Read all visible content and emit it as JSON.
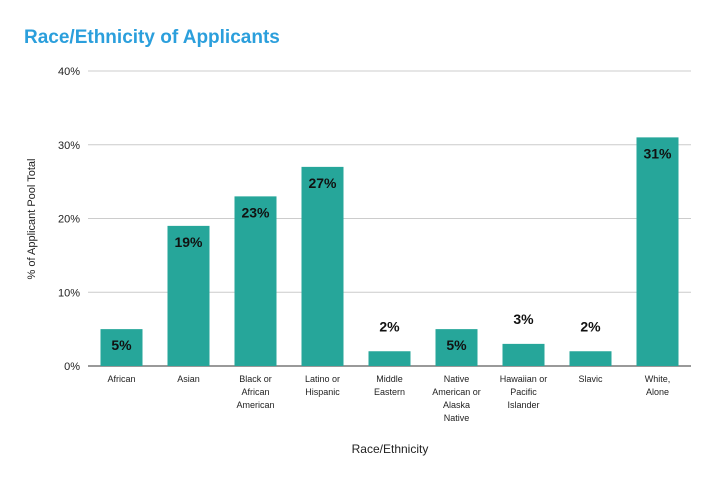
{
  "chart_data": {
    "type": "bar",
    "title": "Race/Ethnicity of Applicants",
    "xlabel": "Race/Ethnicity",
    "ylabel": "% of Applicant Pool Total",
    "ylim": [
      0,
      40
    ],
    "yticks": [
      "0%",
      "10%",
      "20%",
      "30%",
      "40%"
    ],
    "grid": true,
    "categories": [
      [
        "African"
      ],
      [
        "Asian"
      ],
      [
        "Black or",
        "African",
        "American"
      ],
      [
        "Latino or",
        "Hispanic"
      ],
      [
        "Middle",
        "Eastern"
      ],
      [
        "Native",
        "American or",
        "Alaska",
        "Native"
      ],
      [
        "Hawaiian or",
        "Pacific",
        "Islander"
      ],
      [
        "Slavic"
      ],
      [
        "White,",
        "Alone"
      ]
    ],
    "values": [
      5,
      19,
      23,
      27,
      2,
      5,
      3,
      2,
      31
    ],
    "data_labels": [
      "5%",
      "19%",
      "23%",
      "27%",
      "2%",
      "5%",
      "3%",
      "2%",
      "31%"
    ],
    "colors": {
      "bar": "#26a69a",
      "title": "#2b9fdc"
    }
  }
}
